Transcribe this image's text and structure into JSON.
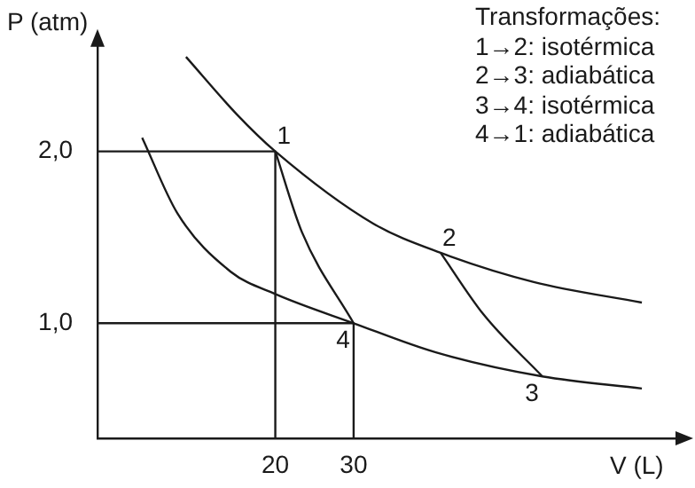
{
  "chart_data": {
    "type": "line",
    "xlabel": "V (L)",
    "ylabel": "P (atm)",
    "xlim": [
      -2.7,
      72
    ],
    "ylim": [
      0.33,
      2.65
    ],
    "xticks": [
      20,
      30
    ],
    "yticks": [
      {
        "value": 1,
        "label": "1,0"
      },
      {
        "value": 2,
        "label": "2,0"
      }
    ],
    "grid": false,
    "legend": false,
    "marker": "none",
    "line_style": "solid",
    "series": [
      {
        "color": "#1a1a1a",
        "x": [
          8.6,
          15,
          20,
          32.5,
          41.1,
          53,
          66.8
        ],
        "values": [
          2.55,
          2.22,
          2.0,
          1.58,
          1.41,
          1.24,
          1.12
        ]
      },
      {
        "color": "#1a1a1a",
        "x": [
          3,
          7.5,
          14.3,
          20,
          30,
          40.5,
          54.1,
          66.8
        ],
        "values": [
          2.08,
          1.64,
          1.3,
          1.17,
          1.0,
          0.83,
          0.69,
          0.62
        ]
      },
      {
        "color": "#1a1a1a",
        "x": [
          41.1,
          46.6,
          54.1
        ],
        "values": [
          1.41,
          1.05,
          0.69
        ]
      },
      {
        "color": "#1a1a1a",
        "x": [
          30,
          23.4,
          20
        ],
        "values": [
          1.0,
          1.53,
          2.0
        ]
      },
      {
        "color": "#1a1a1a",
        "x": [
          -2.7,
          20,
          20
        ],
        "values": [
          2.0,
          2.0,
          0.33
        ]
      },
      {
        "color": "#1a1a1a",
        "x": [
          -2.7,
          30,
          30
        ],
        "values": [
          1.0,
          1.0,
          0.33
        ]
      }
    ],
    "annotations": [
      {
        "text": "1",
        "x": 20,
        "y": 2.0
      },
      {
        "text": "2",
        "x": 41.1,
        "y": 1.41
      },
      {
        "text": "3",
        "x": 54.1,
        "y": 0.69
      },
      {
        "text": "4",
        "x": 30,
        "y": 1.0
      },
      "Transformações:",
      "1→2: isotérmica",
      "2→3: adiabática",
      "3→4: isotérmica",
      "4→1: adiabática"
    ]
  }
}
